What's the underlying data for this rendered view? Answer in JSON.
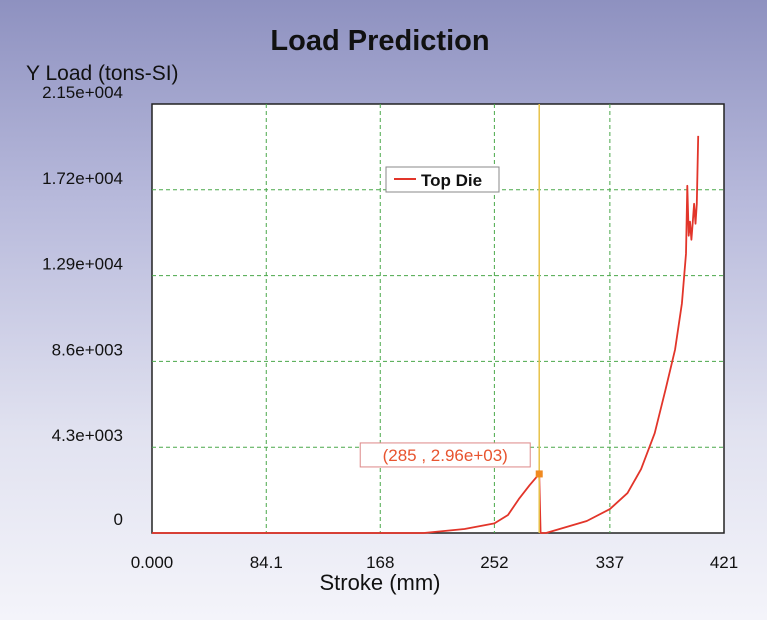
{
  "chart_data": {
    "type": "line",
    "title": "Load Prediction",
    "ylabel": "Y Load (tons-SI)",
    "xlabel": "Stroke (mm)",
    "xlim": [
      0,
      421
    ],
    "ylim": [
      0,
      21500
    ],
    "x_ticks": [
      0,
      84.1,
      168,
      252,
      337,
      421
    ],
    "x_tick_labels": [
      "0.000",
      "84.1",
      "168",
      "252",
      "337",
      "421"
    ],
    "y_ticks": [
      0,
      4300,
      8600,
      12900,
      17200,
      21500
    ],
    "y_tick_labels": [
      "0",
      "4.3e+003",
      "8.6e+003",
      "1.29e+004",
      "1.72e+004",
      "2.15e+004"
    ],
    "grid": true,
    "legend_position": "top-center",
    "series": [
      {
        "name": "Top Die",
        "color": "#e2352a",
        "points": [
          [
            0,
            0
          ],
          [
            200,
            0
          ],
          [
            230,
            200
          ],
          [
            252,
            480
          ],
          [
            262,
            900
          ],
          [
            270,
            1700
          ],
          [
            278,
            2400
          ],
          [
            285,
            2960
          ],
          [
            286,
            0
          ],
          [
            290,
            0
          ],
          [
            300,
            200
          ],
          [
            320,
            600
          ],
          [
            337,
            1200
          ],
          [
            350,
            2000
          ],
          [
            360,
            3200
          ],
          [
            370,
            5000
          ],
          [
            378,
            7200
          ],
          [
            385,
            9200
          ],
          [
            390,
            11500
          ],
          [
            393,
            14000
          ],
          [
            394,
            17400
          ],
          [
            395,
            14900
          ],
          [
            396,
            15600
          ],
          [
            397,
            14700
          ],
          [
            398,
            15600
          ],
          [
            399,
            16500
          ],
          [
            400,
            15500
          ],
          [
            401,
            16500
          ],
          [
            402,
            19900
          ]
        ]
      }
    ],
    "cursor": {
      "x": 285,
      "y": 2960,
      "label": "(285 , 2.96e+03)",
      "line_color": "#e8c24a",
      "marker_color": "#f08a20",
      "label_color": "#e8542f"
    }
  }
}
